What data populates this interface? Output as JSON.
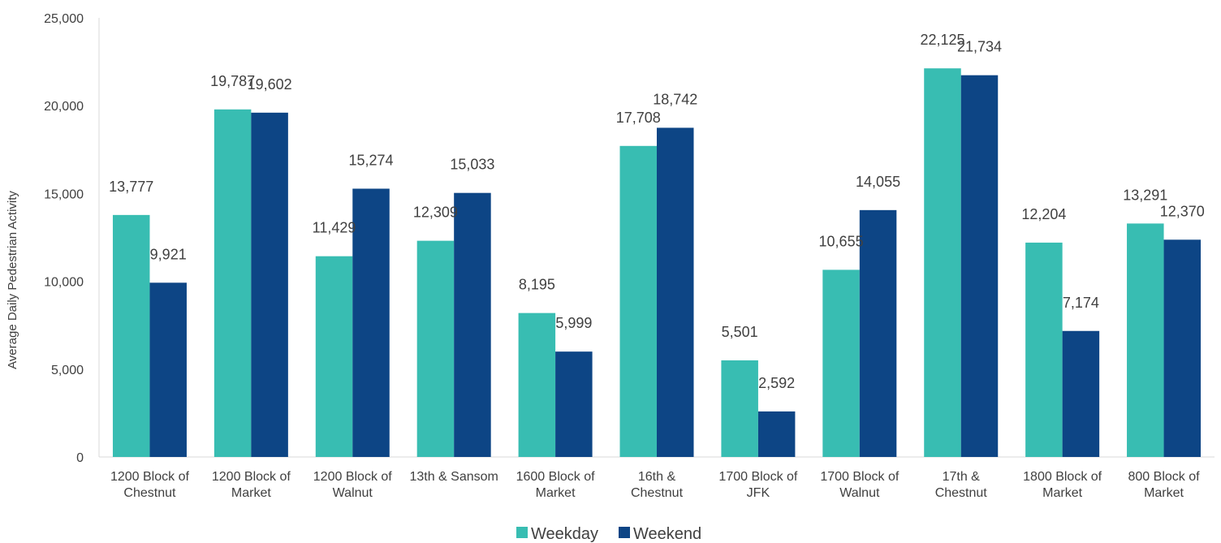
{
  "chart_data": {
    "type": "bar",
    "title": "",
    "xlabel": "",
    "ylabel": "Average Daily Pedestrian Activity",
    "ylim": [
      0,
      25000
    ],
    "yticks": [
      0,
      5000,
      10000,
      15000,
      20000,
      25000
    ],
    "ytick_labels": [
      "0",
      "5,000",
      "10,000",
      "15,000",
      "20,000",
      "25,000"
    ],
    "grid": false,
    "legend_position": "bottom",
    "categories": [
      [
        "1200 Block of",
        "Chestnut"
      ],
      [
        "1200 Block of",
        "Market"
      ],
      [
        "1200 Block of",
        "Walnut"
      ],
      [
        "13th & Sansom"
      ],
      [
        "1600 Block of",
        "Market"
      ],
      [
        "16th &",
        "Chestnut"
      ],
      [
        "1700 Block of",
        "JFK"
      ],
      [
        "1700 Block of",
        "Walnut"
      ],
      [
        "17th &",
        "Chestnut"
      ],
      [
        "1800 Block of",
        "Market"
      ],
      [
        "800 Block of",
        "Market"
      ]
    ],
    "series": [
      {
        "name": "Weekday",
        "color": "#38bdb2",
        "values": [
          13777,
          19787,
          11429,
          12309,
          8195,
          17708,
          5501,
          10655,
          22125,
          12204,
          13291
        ],
        "labels": [
          "13,777",
          "19,787",
          "11,429",
          "12,309",
          "8,195",
          "17,708",
          "5,501",
          "10,655",
          "22,125",
          "12,204",
          "13,291"
        ]
      },
      {
        "name": "Weekend",
        "color": "#0d4585",
        "values": [
          9921,
          19602,
          15274,
          15033,
          5999,
          18742,
          2592,
          14055,
          21734,
          7174,
          12370
        ],
        "labels": [
          "9,921",
          "19,602",
          "15,274",
          "15,033",
          "5,999",
          "18,742",
          "2,592",
          "14,055",
          "21,734",
          "7,174",
          "12,370"
        ]
      }
    ]
  }
}
